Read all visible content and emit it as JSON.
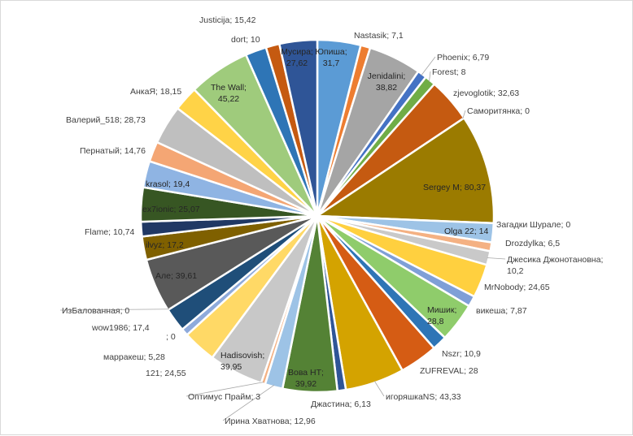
{
  "chart_data": {
    "type": "pie",
    "title": "",
    "label_format": "{name}; {value}",
    "slices": [
      {
        "name": "Юпиша",
        "value": "31,7",
        "color": "#5b9bd5"
      },
      {
        "name": "Nastasik",
        "value": "7,1",
        "color": "#ed7d31"
      },
      {
        "name": "Jenidalini",
        "value": "38,82",
        "color": "#a5a5a5"
      },
      {
        "name": "Phoenix",
        "value": "6,79",
        "color": "#4472c4"
      },
      {
        "name": "Forest",
        "value": "8",
        "color": "#70ad47"
      },
      {
        "name": "zjevoglotik",
        "value": "32,63",
        "color": "#c55a11"
      },
      {
        "name": "Саморитянка",
        "value": "0",
        "color": "#595959"
      },
      {
        "name": "Sergey M",
        "value": "80,37",
        "color": "#9b7b00"
      },
      {
        "name": "Загадки Шурале",
        "value": "0",
        "color": "#264478"
      },
      {
        "name": "Olga 22",
        "value": "14",
        "color": "#9dc3e6"
      },
      {
        "name": "Drozdylka",
        "value": "6,5",
        "color": "#f4b183"
      },
      {
        "name": "Джесика Джонотановна",
        "value": "10,2",
        "color": "#c9c9c9"
      },
      {
        "name": "MrNobody",
        "value": "24,65",
        "color": "#ffd03f"
      },
      {
        "name": "викеша",
        "value": "7,87",
        "color": "#7f9fd7"
      },
      {
        "name": "Мишик",
        "value": "28,8",
        "color": "#8fcc6b"
      },
      {
        "name": "Nszr",
        "value": "10,9",
        "color": "#2e75b6"
      },
      {
        "name": "ZUFREVAL",
        "value": "28",
        "color": "#d55c14"
      },
      {
        "name": "игоряшкаNS",
        "value": "43,33",
        "color": "#d4a300"
      },
      {
        "name": "Джастина",
        "value": "6,13",
        "color": "#2f5597"
      },
      {
        "name": "Вова НТ",
        "value": "39,92",
        "color": "#548235"
      },
      {
        "name": "Ирина Хватнова",
        "value": "12,96",
        "color": "#9dc3e6"
      },
      {
        "name": "Оптимус Прайм",
        "value": "3",
        "color": "#f4b183"
      },
      {
        "name": "Hadisovish",
        "value": "39,95",
        "color": "#c8c8c8"
      },
      {
        "name": "121",
        "value": "24,55",
        "color": "#ffd966"
      },
      {
        "name": "марракеш",
        "value": "5,28",
        "color": "#8eaadb"
      },
      {
        "name": "",
        "value": "0",
        "color": "#ffffff"
      },
      {
        "name": "wow1986",
        "value": "17,4",
        "color": "#1f4e79"
      },
      {
        "name": "ИзБалованная",
        "value": "0",
        "color": "#843c0c"
      },
      {
        "name": "Але",
        "value": "39,61",
        "color": "#595959"
      },
      {
        "name": "ilvyz",
        "value": "17,2",
        "color": "#7f6000"
      },
      {
        "name": "Flame",
        "value": "10,74",
        "color": "#203864"
      },
      {
        "name": "ex7ionic",
        "value": "25,07",
        "color": "#375623"
      },
      {
        "name": "krasol",
        "value": "19,4",
        "color": "#8fb4e3"
      },
      {
        "name": "Пернатый",
        "value": "14,76",
        "color": "#f4a674"
      },
      {
        "name": "Валерий_518",
        "value": "28,73",
        "color": "#bfbfbf"
      },
      {
        "name": "АнкаЯ",
        "value": "18,15",
        "color": "#ffd347"
      },
      {
        "name": "The Wall",
        "value": "45,22",
        "color": "#9fcb7c"
      },
      {
        "name": "Justicija",
        "value": "15,42",
        "color": "#2e75b6"
      },
      {
        "name": "dort",
        "value": "10",
        "color": "#c55a11"
      },
      {
        "name": "Мусира",
        "value": "27,62",
        "color": "#2f5597"
      }
    ]
  }
}
